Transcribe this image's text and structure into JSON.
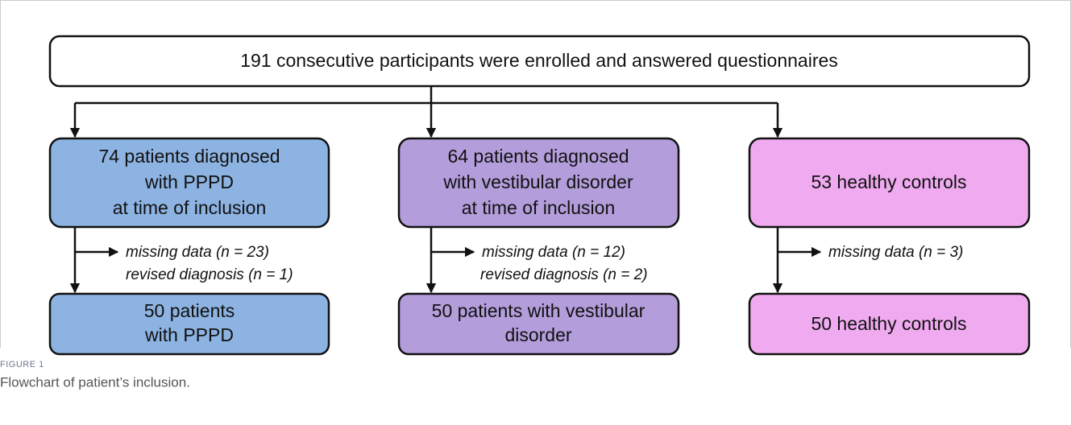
{
  "nodes": [
    {
      "lines": [
        "191 consecutive participants were enrolled and answered questionnaires"
      ]
    },
    {
      "lines": [
        "74 patients diagnosed",
        "with PPPD",
        "at time of inclusion"
      ]
    },
    {
      "lines": [
        "64 patients diagnosed",
        "with vestibular disorder",
        "at time of inclusion"
      ]
    },
    {
      "lines": [
        "53 healthy controls"
      ]
    },
    {
      "lines": [
        "50 patients",
        "with PPPD"
      ]
    },
    {
      "lines": [
        "50 patients with vestibular",
        "disorder"
      ]
    },
    {
      "lines": [
        "50 healthy controls"
      ]
    }
  ],
  "exclusions": [
    {
      "lines": [
        "missing data (n = 23)",
        "revised diagnosis (n = 1)"
      ]
    },
    {
      "lines": [
        "missing data (n = 12)",
        "revised diagnosis (n = 2)"
      ]
    },
    {
      "lines": [
        "missing data (n = 3)"
      ]
    }
  ],
  "caption": {
    "label": "FIGURE 1",
    "text": "Flowchart of patient’s inclusion."
  }
}
